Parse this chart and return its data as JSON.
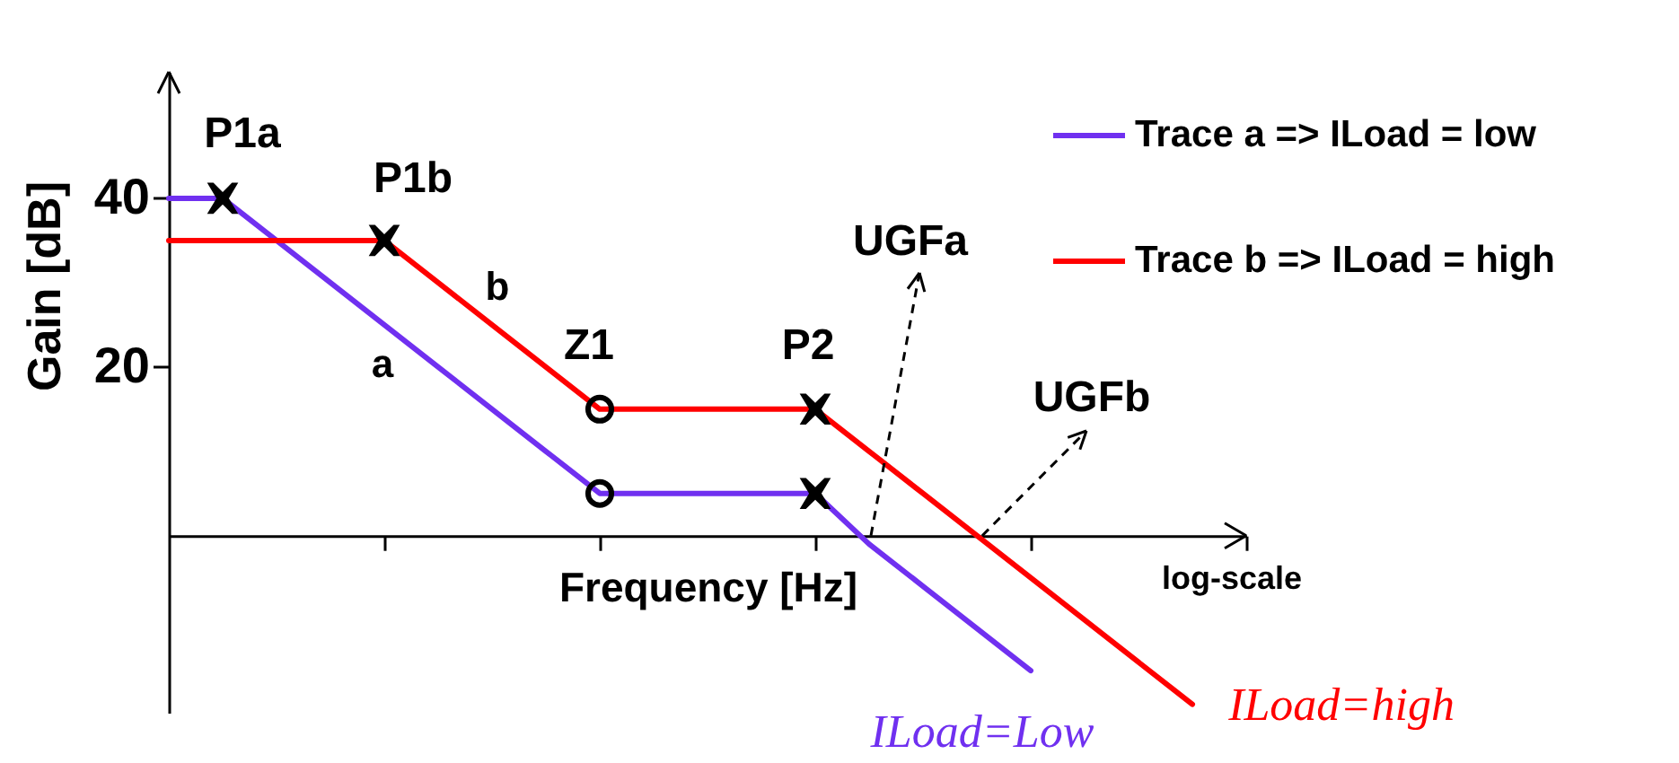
{
  "chart_data": {
    "type": "line",
    "xlabel": "Frequency [Hz]",
    "ylabel": "Gain [dB]",
    "categories": [
      null,
      null,
      null,
      null,
      null,
      null,
      null,
      null,
      null,
      null,
      null,
      null,
      null,
      null,
      null,
      null,
      null,
      null,
      null,
      null,
      null
    ],
    "series": [
      {
        "name": "Trace a => ILoad = low",
        "color": "#7030f0",
        "values": [
          40,
          40,
          35,
          30,
          25,
          20,
          15,
          10,
          5,
          5,
          5,
          5,
          5,
          -1,
          -6,
          -11,
          -16,
          null,
          null,
          null,
          null
        ]
      },
      {
        "name": "Trace b => ILoad = high",
        "color": "#ff0000",
        "values": [
          35,
          35,
          35,
          35,
          35,
          30,
          25,
          20,
          15,
          15,
          15,
          15,
          15,
          10,
          5,
          0,
          -5,
          -10,
          -15,
          -20,
          null
        ]
      },
      {
        "type": "scatter",
        "marker": "cross",
        "color": "#000000",
        "values": [
          null,
          40,
          null,
          null,
          null,
          null,
          null,
          null,
          null,
          null,
          null,
          null,
          5,
          null,
          null,
          null,
          null,
          null,
          null,
          null,
          null
        ]
      },
      {
        "type": "scatter",
        "marker": "cross",
        "color": "#000000",
        "values": [
          null,
          null,
          null,
          null,
          35,
          null,
          null,
          null,
          null,
          null,
          null,
          null,
          15,
          null,
          null,
          null,
          null,
          null,
          null,
          null,
          null
        ]
      },
      {
        "type": "scatter",
        "marker": "circle",
        "color": "#000000",
        "values": [
          null,
          null,
          null,
          null,
          null,
          null,
          null,
          null,
          5,
          null,
          null,
          null,
          null,
          null,
          null,
          null,
          null,
          null,
          null,
          null,
          null
        ]
      },
      {
        "type": "scatter",
        "marker": "circle",
        "color": "#000000",
        "values": [
          null,
          null,
          null,
          null,
          null,
          null,
          null,
          null,
          15,
          null,
          null,
          null,
          null,
          null,
          null,
          null,
          null,
          null,
          null,
          null,
          null
        ]
      }
    ],
    "ylim": [
      -21,
      55
    ],
    "yticks": [
      20,
      40
    ],
    "legend": "top right",
    "annotations": [
      "P1a",
      "P1b",
      "a",
      "b",
      "Z1",
      "P2",
      "UGFa",
      "UGFb",
      "log-scale",
      "ILoad=Low",
      "ILoad=high"
    ]
  }
}
